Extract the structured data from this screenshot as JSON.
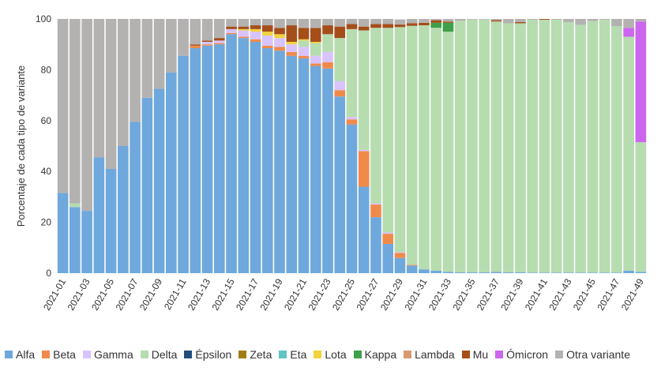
{
  "chart_data": {
    "type": "bar",
    "stacked": true,
    "ylabel": "Porcentaje de cada tipo de variante",
    "xlabel": "",
    "ylim": [
      0,
      100
    ],
    "yticks": [
      0,
      20,
      40,
      60,
      80,
      100
    ],
    "grid": false,
    "legend_position": "bottom",
    "categories": [
      "2021-01",
      "2021-02",
      "2021-03",
      "2021-04",
      "2021-05",
      "2021-06",
      "2021-07",
      "2021-08",
      "2021-09",
      "2021-10",
      "2021-11",
      "2021-12",
      "2021-13",
      "2021-14",
      "2021-15",
      "2021-16",
      "2021-17",
      "2021-18",
      "2021-19",
      "2021-20",
      "2021-21",
      "2021-22",
      "2021-23",
      "2021-24",
      "2021-25",
      "2021-26",
      "2021-27",
      "2021-28",
      "2021-29",
      "2021-30",
      "2021-31",
      "2021-32",
      "2021-33",
      "2021-34",
      "2021-35",
      "2021-36",
      "2021-37",
      "2021-38",
      "2021-39",
      "2021-40",
      "2021-41",
      "2021-42",
      "2021-43",
      "2021-44",
      "2021-45",
      "2021-46",
      "2021-47",
      "2021-48",
      "2021-49"
    ],
    "x_tick_labels": [
      "2021-01",
      "2021-03",
      "2021-05",
      "2021-07",
      "2021-09",
      "2021-11",
      "2021-13",
      "2021-15",
      "2021-17",
      "2021-19",
      "2021-21",
      "2021-23",
      "2021-25",
      "2021-27",
      "2021-29",
      "2021-31",
      "2021-33",
      "2021-35",
      "2021-37",
      "2021-39",
      "2021-41",
      "2021-43",
      "2021-45",
      "2021-47",
      "2021-49"
    ],
    "series": [
      {
        "name": "Alfa",
        "color": "#6fa8dc",
        "values": [
          31.5,
          26,
          24.5,
          45.5,
          41,
          50,
          59.5,
          69,
          72.5,
          79,
          85.5,
          88.5,
          89.5,
          90,
          94,
          92.5,
          91,
          88.5,
          87.5,
          85.5,
          84.5,
          81.5,
          80.5,
          69.5,
          58.5,
          34,
          22,
          11.5,
          6,
          3,
          1.5,
          1,
          0.5,
          0.3,
          0.3,
          0.3,
          0.5,
          0.3,
          0.3,
          0.2,
          0.2,
          0.2,
          0.2,
          0.2,
          0.2,
          0.2,
          0.2,
          1,
          0.5
        ]
      },
      {
        "name": "Beta",
        "color": "#f08a4b",
        "values": [
          0,
          0,
          0,
          0,
          0,
          0,
          0,
          0,
          0,
          0,
          0,
          1,
          0.5,
          0.5,
          0.5,
          0.5,
          1,
          1,
          1.5,
          1.5,
          1,
          1,
          2.5,
          2.5,
          2,
          14,
          5,
          4,
          2,
          0.3,
          0,
          0,
          0,
          0,
          0,
          0,
          0,
          0,
          0,
          0,
          0,
          0,
          0,
          0,
          0,
          0,
          0,
          0,
          0
        ]
      },
      {
        "name": "Gamma",
        "color": "#d8c3ff",
        "values": [
          0,
          0,
          0,
          0,
          0,
          0,
          0,
          0,
          0,
          0,
          0,
          0,
          1,
          1,
          1.5,
          2.5,
          3,
          4,
          3.5,
          3,
          3.5,
          3,
          4,
          3.5,
          1,
          0.5,
          0.5,
          0.5,
          0.3,
          0,
          0,
          0,
          0,
          0,
          0,
          0,
          0,
          0,
          0,
          0,
          0,
          0,
          0,
          0,
          0,
          0,
          0,
          0,
          0
        ]
      },
      {
        "name": "Delta",
        "color": "#b6dcb0",
        "values": [
          0,
          1.5,
          0,
          0,
          0,
          0,
          0,
          0,
          0,
          0,
          0,
          0,
          0,
          0,
          0,
          0,
          0,
          0,
          0,
          0,
          2.5,
          5,
          7,
          17,
          34.5,
          47,
          69,
          80.5,
          88.5,
          94,
          96,
          95.5,
          94.5,
          99,
          99.5,
          99.5,
          98.5,
          98,
          98,
          99.5,
          99.5,
          99.5,
          98.5,
          97.5,
          99,
          99.5,
          97,
          92,
          51
        ]
      },
      {
        "name": "Épsilon",
        "color": "#1f4e79",
        "values": [
          0,
          0,
          0,
          0,
          0,
          0,
          0,
          0,
          0,
          0,
          0,
          0,
          0,
          0,
          0,
          0,
          0,
          0,
          0,
          0,
          0,
          0,
          0,
          0,
          0,
          0,
          0,
          0,
          0,
          0,
          0,
          0,
          0,
          0,
          0,
          0,
          0,
          0,
          0,
          0,
          0,
          0,
          0,
          0,
          0,
          0,
          0,
          0,
          0
        ]
      },
      {
        "name": "Zeta",
        "color": "#a07d14",
        "values": [
          0,
          0,
          0,
          0,
          0,
          0,
          0,
          0,
          0,
          0,
          0,
          0,
          0,
          0,
          0,
          0,
          0,
          0,
          0,
          0,
          0,
          0,
          0,
          0,
          0,
          0,
          0,
          0,
          0,
          0,
          0,
          0,
          0,
          0,
          0,
          0,
          0,
          0,
          0,
          0,
          0,
          0,
          0,
          0,
          0,
          0,
          0,
          0,
          0
        ]
      },
      {
        "name": "Eta",
        "color": "#5ec4c6",
        "values": [
          0,
          0,
          0,
          0,
          0,
          0,
          0,
          0,
          0,
          0,
          0,
          0,
          0,
          0,
          0,
          0,
          0,
          0,
          0,
          0,
          0,
          0,
          0,
          0,
          0,
          0,
          0,
          0,
          0,
          0,
          0,
          0,
          0,
          0,
          0,
          0,
          0,
          0,
          0,
          0,
          0,
          0,
          0,
          0,
          0,
          0,
          0,
          0,
          0
        ]
      },
      {
        "name": "Lota",
        "color": "#f2d33c",
        "values": [
          0,
          0,
          0,
          0,
          0,
          0,
          0,
          0,
          0,
          0,
          0,
          0,
          0,
          0,
          0,
          0.5,
          1,
          1.5,
          1.5,
          1,
          0.5,
          0.5,
          0,
          0,
          0,
          0,
          0,
          0,
          0,
          0,
          0,
          0,
          0,
          0,
          0,
          0,
          0,
          0,
          0,
          0,
          0,
          0,
          0,
          0,
          0,
          0,
          0,
          0,
          0
        ]
      },
      {
        "name": "Kappa",
        "color": "#3ea04a",
        "values": [
          0,
          0,
          0,
          0,
          0,
          0,
          0,
          0,
          0,
          0,
          0,
          0,
          0,
          0,
          0,
          0,
          0,
          0,
          0,
          0,
          0,
          0,
          0,
          0,
          0,
          0,
          0,
          0,
          0,
          0,
          0,
          2,
          3.5,
          0,
          0,
          0,
          0,
          0,
          0,
          0,
          0,
          0,
          0,
          0,
          0,
          0,
          0,
          0,
          0
        ]
      },
      {
        "name": "Lambda",
        "color": "#d99a72",
        "values": [
          0,
          0,
          0,
          0,
          0,
          0,
          0,
          0,
          0,
          0,
          0,
          0,
          0,
          0,
          0,
          0,
          0,
          0,
          0,
          0,
          0,
          0,
          0,
          0,
          0,
          0,
          0,
          0,
          0,
          0,
          0,
          0,
          0,
          0,
          0,
          0,
          0,
          0,
          0,
          0,
          0,
          0,
          0,
          0,
          0,
          0,
          0,
          0,
          0
        ]
      },
      {
        "name": "Mu",
        "color": "#a54e1a",
        "values": [
          0,
          0,
          0,
          0,
          0,
          0,
          0,
          0,
          0,
          0,
          0,
          0.5,
          0.5,
          1,
          1,
          1,
          1.5,
          2.5,
          2.5,
          6.5,
          4.5,
          5.5,
          3.5,
          4.5,
          2,
          1.5,
          1.5,
          1.5,
          1,
          1,
          1,
          1,
          0.5,
          0,
          0,
          0,
          0.5,
          0,
          0.5,
          0,
          0.3,
          0,
          0,
          0,
          0,
          0,
          0,
          0,
          0
        ]
      },
      {
        "name": "Ómicron",
        "color": "#cc66ee",
        "values": [
          0,
          0,
          0,
          0,
          0,
          0,
          0,
          0,
          0,
          0,
          0,
          0,
          0,
          0,
          0,
          0,
          0,
          0,
          0,
          0,
          0,
          0,
          0,
          0,
          0,
          0,
          0,
          0,
          0,
          0,
          0,
          0,
          0,
          0,
          0,
          0,
          0,
          0,
          0,
          0,
          0,
          0,
          0,
          0,
          0,
          0,
          0,
          3.5,
          47.5
        ]
      },
      {
        "name": "Otra variante",
        "color": "#b4b1b1",
        "values": [
          68.5,
          72.5,
          75.5,
          54.5,
          59,
          50,
          40.5,
          31,
          27.5,
          21,
          14.5,
          10,
          8.5,
          7.5,
          3,
          3,
          2.5,
          2.5,
          3.5,
          2.5,
          3.5,
          3.5,
          2.5,
          3,
          2,
          3,
          2,
          2,
          2,
          1.7,
          1.5,
          0.5,
          1,
          0.7,
          0.2,
          0.2,
          0.5,
          1.7,
          1.2,
          0.3,
          0,
          0.3,
          1.3,
          2.3,
          0.8,
          0.3,
          2.8,
          3.5,
          1
        ]
      }
    ]
  }
}
